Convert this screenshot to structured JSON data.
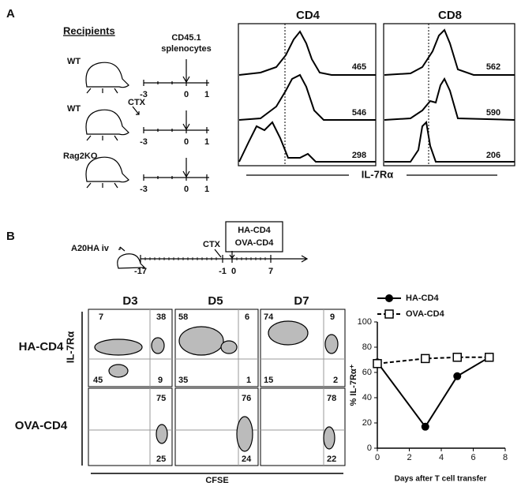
{
  "panel_a": {
    "label": "A",
    "recipients_title": "Recipients",
    "rows": [
      {
        "label": "WT"
      },
      {
        "label": "WT",
        "treatment": "CTX"
      },
      {
        "label": "Rag2KO"
      }
    ],
    "injection": [
      "CD45.1",
      "splenocytes"
    ],
    "timeline_ticks": [
      "-3",
      "0",
      "1"
    ],
    "columns": [
      {
        "title": "CD4",
        "values": [
          "465",
          "546",
          "298"
        ]
      },
      {
        "title": "CD8",
        "values": [
          "562",
          "590",
          "206"
        ]
      }
    ],
    "xlabel": "IL-7Rα"
  },
  "panel_b": {
    "label": "B",
    "tumor": "A20HA iv",
    "treatment": "CTX",
    "transfer": [
      "HA-CD4",
      "OVA-CD4"
    ],
    "timeline_ticks": [
      "-17",
      "-1",
      "0",
      "7"
    ],
    "days": [
      "D3",
      "D5",
      "D7"
    ],
    "rows": [
      "HA-CD4",
      "OVA-CD4"
    ],
    "ylabel": "IL-7Rα",
    "xlabel": "CFSE",
    "ha_quadrants": [
      [
        "7",
        "38",
        "45",
        "9"
      ],
      [
        "58",
        "6",
        "35",
        "1"
      ],
      [
        "74",
        "9",
        "15",
        "2"
      ]
    ],
    "ova_quadrants": [
      [
        "75",
        "25"
      ],
      [
        "76",
        "24"
      ],
      [
        "78",
        "22"
      ]
    ],
    "chart": {
      "type": "line",
      "x": [
        0,
        3,
        5,
        7
      ],
      "xlim": [
        0,
        8
      ],
      "xticks": [
        0,
        2,
        4,
        6,
        8
      ],
      "ylim": [
        0,
        100
      ],
      "yticks": [
        0,
        20,
        40,
        60,
        80,
        100
      ],
      "ylabel": "% IL-7Rα⁺",
      "xlabel": "Days after T cell transfer",
      "series": [
        {
          "name": "HA-CD4",
          "color": "#000000",
          "values": [
            68,
            17,
            57,
            72
          ]
        },
        {
          "name": "OVA-CD4",
          "color": "#000000",
          "values": [
            67,
            71,
            72,
            72
          ]
        }
      ]
    }
  }
}
